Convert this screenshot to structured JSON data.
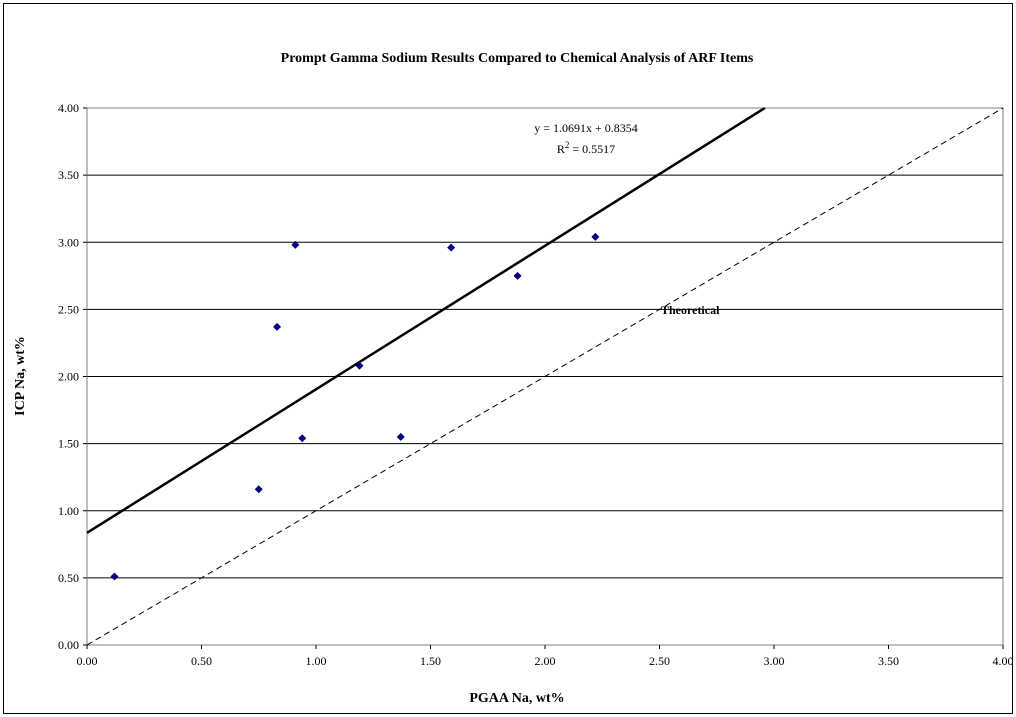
{
  "chart_data": {
    "type": "scatter",
    "title": "Prompt Gamma Sodium Results Compared to Chemical Analysis of ARF Items",
    "xlabel": "PGAA Na, wt%",
    "ylabel": "ICP Na, wt%",
    "xlim": [
      0,
      4
    ],
    "ylim": [
      0,
      4
    ],
    "x_ticks": [
      "0.00",
      "0.50",
      "1.00",
      "1.50",
      "2.00",
      "2.50",
      "3.00",
      "3.50",
      "4.00"
    ],
    "y_ticks": [
      "0.00",
      "0.50",
      "1.00",
      "1.50",
      "2.00",
      "2.50",
      "3.00",
      "3.50",
      "4.00"
    ],
    "grid": "horizontal",
    "series": [
      {
        "marker": "diamond",
        "color": "#000080",
        "points": [
          {
            "x": 0.12,
            "y": 0.51
          },
          {
            "x": 0.75,
            "y": 1.16
          },
          {
            "x": 0.83,
            "y": 2.37
          },
          {
            "x": 0.91,
            "y": 2.98
          },
          {
            "x": 0.94,
            "y": 1.54
          },
          {
            "x": 1.19,
            "y": 2.08
          },
          {
            "x": 1.37,
            "y": 1.55
          },
          {
            "x": 1.59,
            "y": 2.96
          },
          {
            "x": 1.88,
            "y": 2.75
          },
          {
            "x": 2.22,
            "y": 3.04
          }
        ]
      }
    ],
    "trendline": {
      "slope": 1.0691,
      "intercept": 0.8354,
      "style": "solid",
      "color": "#000000"
    },
    "theoretical_line": {
      "slope": 1,
      "intercept": 0,
      "style": "dashed",
      "color": "#000000"
    },
    "annotations": {
      "equation": "y = 1.0691x + 0.8354",
      "r2_prefix": "R",
      "r2_sup": "2",
      "r2_suffix": " = 0.5517",
      "theoretical_label": "Theoretical"
    }
  }
}
